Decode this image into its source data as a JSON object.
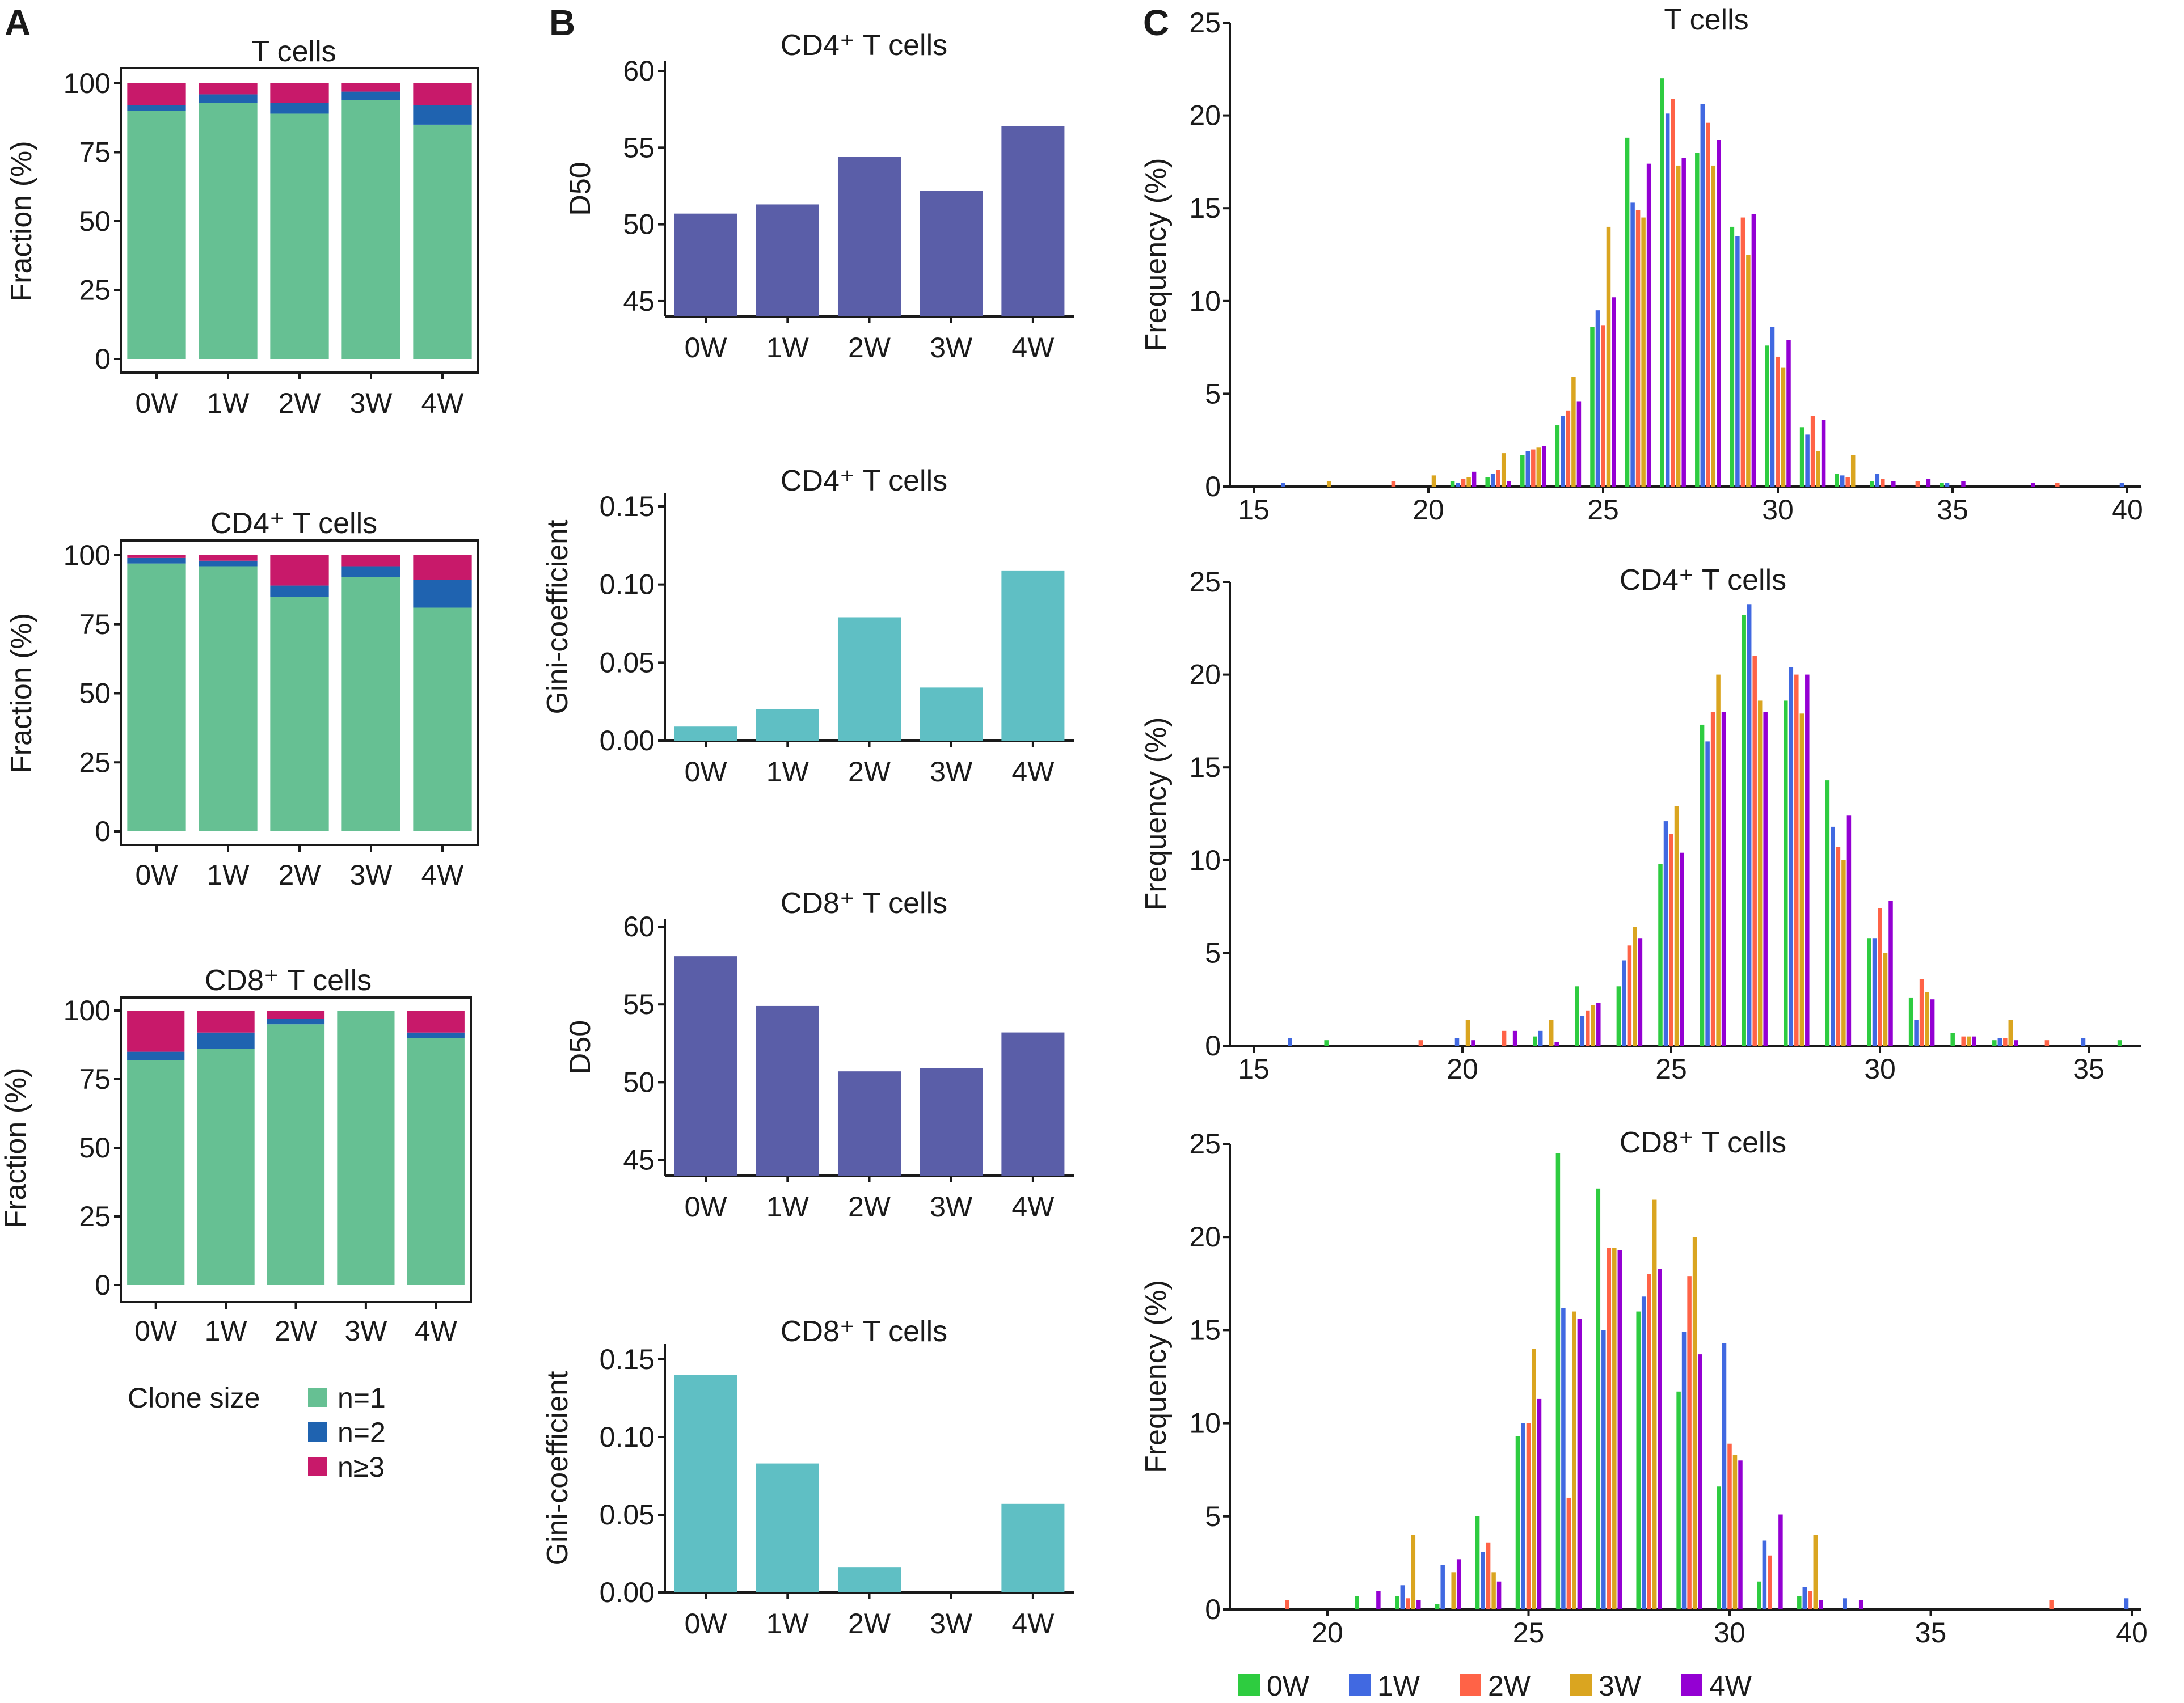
{
  "panels": {
    "a": "A",
    "b": "B",
    "c": "C"
  },
  "colors": {
    "n1": "#66c093",
    "n2": "#1f63b0",
    "n3": "#c8196a",
    "d50": "#5a5ea8",
    "gini": "#5fbfc4",
    "w0": "#2ecc40",
    "w1": "#4169e1",
    "w2": "#ff6347",
    "w3": "#daa520",
    "w4": "#9400d3"
  },
  "clone_legend": {
    "title": "Clone size",
    "items": [
      {
        "label": "n=1",
        "color": "#66c093"
      },
      {
        "label": "n=2",
        "color": "#1f63b0"
      },
      {
        "label": "n≥3",
        "color": "#c8196a"
      }
    ]
  },
  "freq_legend": {
    "items": [
      {
        "label": "0W",
        "color": "#2ecc40"
      },
      {
        "label": "1W",
        "color": "#4169e1"
      },
      {
        "label": "2W",
        "color": "#ff6347"
      },
      {
        "label": "3W",
        "color": "#daa520"
      },
      {
        "label": "4W",
        "color": "#9400d3"
      }
    ]
  },
  "chart_data": [
    {
      "id": "a1",
      "type": "bar",
      "stacked": true,
      "title": "T cells",
      "categories": [
        "0W",
        "1W",
        "2W",
        "3W",
        "4W"
      ],
      "ylabel": "Fraction (%)",
      "ylim": [
        0,
        100
      ],
      "yticks": [
        0,
        25,
        50,
        75,
        100
      ],
      "series": [
        {
          "name": "n=1",
          "values": [
            90,
            93,
            89,
            94,
            85
          ]
        },
        {
          "name": "n=2",
          "values": [
            2,
            3,
            4,
            3,
            7
          ]
        },
        {
          "name": "n≥3",
          "values": [
            8,
            4,
            7,
            3,
            8
          ]
        }
      ]
    },
    {
      "id": "a2",
      "type": "bar",
      "stacked": true,
      "title": "CD4⁺ T cells",
      "categories": [
        "0W",
        "1W",
        "2W",
        "3W",
        "4W"
      ],
      "ylabel": "Fraction (%)",
      "ylim": [
        0,
        100
      ],
      "yticks": [
        0,
        25,
        50,
        75,
        100
      ],
      "series": [
        {
          "name": "n=1",
          "values": [
            97,
            96,
            85,
            92,
            81
          ]
        },
        {
          "name": "n=2",
          "values": [
            2,
            2,
            4,
            4,
            10
          ]
        },
        {
          "name": "n≥3",
          "values": [
            1,
            2,
            11,
            4,
            9
          ]
        }
      ]
    },
    {
      "id": "a3",
      "type": "bar",
      "stacked": true,
      "title": "CD8⁺ T cells",
      "categories": [
        "0W",
        "1W",
        "2W",
        "3W",
        "4W"
      ],
      "ylabel": "Fraction (%)",
      "ylim": [
        0,
        100
      ],
      "yticks": [
        0,
        25,
        50,
        75,
        100
      ],
      "series": [
        {
          "name": "n=1",
          "values": [
            82,
            86,
            95,
            100,
            90
          ]
        },
        {
          "name": "n=2",
          "values": [
            3,
            6,
            2,
            0,
            2
          ]
        },
        {
          "name": "n≥3",
          "values": [
            15,
            8,
            3,
            0,
            8
          ]
        }
      ]
    },
    {
      "id": "b1",
      "type": "bar",
      "title": "CD4⁺ T cells",
      "categories": [
        "0W",
        "1W",
        "2W",
        "3W",
        "4W"
      ],
      "ylabel": "D50",
      "ylim": [
        44,
        60
      ],
      "yticks": [
        45,
        50,
        55,
        60
      ],
      "values": [
        50.7,
        51.3,
        54.4,
        52.2,
        56.4
      ]
    },
    {
      "id": "b2",
      "type": "bar",
      "title": "CD4⁺ T cells",
      "categories": [
        "0W",
        "1W",
        "2W",
        "3W",
        "4W"
      ],
      "ylabel": "Gini-coefficient",
      "ylim": [
        0,
        0.15
      ],
      "yticks": [
        0.0,
        0.05,
        0.1,
        0.15
      ],
      "ytick_labels": [
        "0.00",
        "0.05",
        "0.10",
        "0.15"
      ],
      "values": [
        0.009,
        0.02,
        0.079,
        0.034,
        0.109
      ]
    },
    {
      "id": "b3",
      "type": "bar",
      "title": "CD8⁺ T cells",
      "categories": [
        "0W",
        "1W",
        "2W",
        "3W",
        "4W"
      ],
      "ylabel": "D50",
      "ylim": [
        44,
        60
      ],
      "yticks": [
        45,
        50,
        55,
        60
      ],
      "values": [
        58.1,
        54.9,
        50.7,
        50.9,
        53.2
      ]
    },
    {
      "id": "b4",
      "type": "bar",
      "title": "CD8⁺ T cells",
      "categories": [
        "0W",
        "1W",
        "2W",
        "3W",
        "4W"
      ],
      "ylabel": "Gini-coefficient",
      "ylim": [
        0,
        0.15
      ],
      "yticks": [
        0.0,
        0.05,
        0.1,
        0.15
      ],
      "ytick_labels": [
        "0.00",
        "0.05",
        "0.10",
        "0.15"
      ],
      "values": [
        0.14,
        0.083,
        0.016,
        0.0,
        0.057
      ]
    },
    {
      "id": "c1",
      "type": "bar",
      "title": "T cells",
      "xlabel": "",
      "ylabel": "Frequency (%)",
      "xlim": [
        14.5,
        40.5
      ],
      "xticks": [
        15,
        20,
        25,
        30,
        35,
        40
      ],
      "ylim": [
        0,
        25
      ],
      "yticks": [
        0,
        5,
        10,
        15,
        20,
        25
      ],
      "x": [
        16,
        17,
        18,
        19,
        20,
        21,
        22,
        23,
        24,
        25,
        26,
        27,
        28,
        29,
        30,
        31,
        32,
        33,
        34,
        35,
        36,
        37,
        38,
        39,
        40
      ],
      "series": [
        {
          "name": "0W",
          "values": [
            0,
            0,
            0,
            0,
            0,
            0.3,
            0.5,
            1.7,
            3.3,
            8.6,
            18.8,
            22.0,
            18.0,
            14.0,
            7.6,
            3.2,
            0.7,
            0.3,
            0,
            0.2,
            0,
            0,
            0,
            0,
            0
          ]
        },
        {
          "name": "1W",
          "values": [
            0.2,
            0,
            0,
            0,
            0,
            0.2,
            0.7,
            1.9,
            3.8,
            9.5,
            15.3,
            20.1,
            20.6,
            13.5,
            8.6,
            2.8,
            0.6,
            0.7,
            0,
            0.2,
            0,
            0,
            0,
            0,
            0.2
          ]
        },
        {
          "name": "2W",
          "values": [
            0,
            0,
            0,
            0.3,
            0,
            0.4,
            0.9,
            2.0,
            4.1,
            8.7,
            14.9,
            20.9,
            19.6,
            14.5,
            7.0,
            3.8,
            0.5,
            0.4,
            0.3,
            0,
            0,
            0,
            0.2,
            0,
            0
          ]
        },
        {
          "name": "3W",
          "values": [
            0,
            0.3,
            0,
            0,
            0.6,
            0.5,
            1.8,
            2.1,
            5.9,
            14.0,
            14.5,
            17.3,
            17.3,
            12.5,
            6.4,
            1.9,
            1.7,
            0,
            0,
            0,
            0,
            0,
            0,
            0,
            0
          ]
        },
        {
          "name": "4W",
          "values": [
            0,
            0,
            0,
            0,
            0,
            0.8,
            0.3,
            2.2,
            4.6,
            10.2,
            17.4,
            17.7,
            18.7,
            14.7,
            7.9,
            3.6,
            0,
            0.3,
            0.4,
            0.3,
            0,
            0.2,
            0,
            0,
            0
          ]
        }
      ]
    },
    {
      "id": "c2",
      "type": "bar",
      "title": "CD4⁺ T cells",
      "xlabel": "",
      "ylabel": "Frequency (%)",
      "xlim": [
        14.5,
        36.5
      ],
      "xticks": [
        15,
        20,
        25,
        30,
        35
      ],
      "ylim": [
        0,
        25
      ],
      "yticks": [
        0,
        5,
        10,
        15,
        20,
        25
      ],
      "x": [
        16,
        17,
        18,
        19,
        20,
        21,
        22,
        23,
        24,
        25,
        26,
        27,
        28,
        29,
        30,
        31,
        32,
        33,
        34,
        35,
        36
      ],
      "series": [
        {
          "name": "0W",
          "values": [
            0,
            0.3,
            0,
            0,
            0,
            0,
            0.5,
            3.2,
            3.2,
            9.8,
            17.3,
            23.2,
            18.6,
            14.3,
            5.8,
            2.6,
            0.7,
            0.3,
            0,
            0,
            0.3
          ]
        },
        {
          "name": "1W",
          "values": [
            0.4,
            0,
            0,
            0,
            0.4,
            0,
            0.8,
            1.6,
            4.6,
            12.1,
            16.4,
            23.8,
            20.4,
            11.8,
            5.8,
            1.4,
            0,
            0.4,
            0,
            0.4,
            0
          ]
        },
        {
          "name": "2W",
          "values": [
            0,
            0,
            0,
            0.3,
            0,
            0.8,
            0,
            1.9,
            5.4,
            11.4,
            18.0,
            21.0,
            20.0,
            10.7,
            7.4,
            3.6,
            0.5,
            0.4,
            0.3,
            0,
            0
          ]
        },
        {
          "name": "3W",
          "values": [
            0,
            0,
            0,
            0,
            1.4,
            0,
            1.4,
            2.2,
            6.4,
            12.9,
            20.0,
            18.6,
            17.9,
            10.0,
            5.0,
            2.9,
            0.5,
            1.4,
            0,
            0,
            0
          ]
        },
        {
          "name": "4W",
          "values": [
            0,
            0,
            0,
            0,
            0.3,
            0.8,
            0.2,
            2.3,
            5.8,
            10.4,
            18.0,
            18.0,
            20.0,
            12.4,
            7.8,
            2.5,
            0.5,
            0.3,
            0,
            0,
            0
          ]
        }
      ]
    },
    {
      "id": "c3",
      "type": "bar",
      "title": "CD8⁺ T cells",
      "xlabel": "",
      "ylabel": "Frequency (%)",
      "xlim": [
        17.5,
        41.2
      ],
      "xticks": [
        20,
        25,
        30,
        35,
        40
      ],
      "ylim": [
        0,
        25
      ],
      "yticks": [
        0,
        5,
        10,
        15,
        20,
        25
      ],
      "x": [
        19,
        20,
        21,
        22,
        23,
        24,
        25,
        26,
        27,
        28,
        29,
        30,
        31,
        32,
        33,
        34,
        35,
        36,
        37,
        38,
        39,
        40
      ],
      "series": [
        {
          "name": "0W",
          "values": [
            0,
            0,
            0.7,
            0.7,
            0.3,
            5.0,
            9.3,
            24.5,
            22.6,
            16.0,
            11.7,
            6.6,
            1.5,
            0.7,
            0,
            0,
            0,
            0,
            0,
            0,
            0,
            0
          ]
        },
        {
          "name": "1W",
          "values": [
            0,
            0,
            0,
            1.3,
            2.4,
            3.1,
            10.0,
            16.2,
            15.0,
            16.8,
            14.9,
            14.3,
            3.7,
            1.2,
            0.6,
            0,
            0,
            0,
            0,
            0,
            0,
            0.6
          ]
        },
        {
          "name": "2W",
          "values": [
            0.5,
            0,
            0,
            0.6,
            0,
            3.6,
            10.0,
            6.0,
            19.4,
            18.0,
            17.9,
            8.9,
            2.9,
            1.0,
            0,
            0,
            0,
            0,
            0,
            0.5,
            0,
            0
          ]
        },
        {
          "name": "3W",
          "values": [
            0,
            0,
            0,
            4.0,
            2.0,
            2.0,
            14.0,
            16.0,
            19.4,
            22.0,
            20.0,
            8.3,
            0,
            4.0,
            0,
            0,
            0,
            0,
            0,
            0,
            0,
            0
          ]
        },
        {
          "name": "4W",
          "values": [
            0,
            0,
            1.0,
            0.5,
            2.7,
            1.5,
            11.3,
            15.6,
            19.3,
            18.3,
            13.7,
            8.0,
            5.1,
            0.5,
            0.5,
            0,
            0,
            0,
            0,
            0,
            0,
            0
          ]
        }
      ]
    }
  ]
}
